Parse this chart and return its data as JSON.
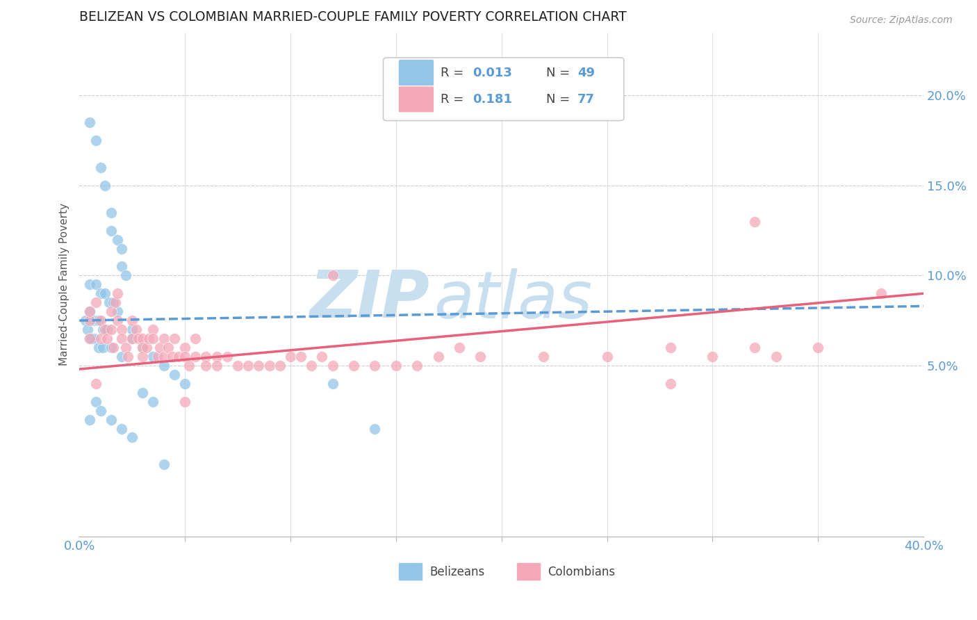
{
  "title": "BELIZEAN VS COLOMBIAN MARRIED-COUPLE FAMILY POVERTY CORRELATION CHART",
  "source": "Source: ZipAtlas.com",
  "ylabel": "Married-Couple Family Poverty",
  "ytick_labels": [
    "5.0%",
    "10.0%",
    "15.0%",
    "20.0%"
  ],
  "ytick_values": [
    0.05,
    0.1,
    0.15,
    0.2
  ],
  "xlim": [
    0.0,
    0.4
  ],
  "ylim": [
    -0.045,
    0.235
  ],
  "belizean_color": "#92C5E8",
  "colombian_color": "#F4A8B8",
  "belizean_line_color": "#5B9BD5",
  "colombian_line_color": "#E8607A",
  "tick_color": "#5B9BD5",
  "watermark_color": "#C8DFF0",
  "legend_R_belizean": "R = ",
  "legend_R_val_belizean": "0.013",
  "legend_N_belizean": "N = 49",
  "legend_R_colombian": "R = ",
  "legend_R_val_colombian": "0.181",
  "legend_N_colombian": "N = 77",
  "belizean_x": [
    0.005,
    0.008,
    0.01,
    0.012,
    0.015,
    0.015,
    0.018,
    0.02,
    0.02,
    0.022,
    0.005,
    0.008,
    0.01,
    0.012,
    0.014,
    0.016,
    0.018,
    0.005,
    0.007,
    0.009,
    0.011,
    0.013,
    0.005,
    0.007,
    0.009,
    0.011,
    0.003,
    0.004,
    0.006,
    0.015,
    0.02,
    0.025,
    0.025,
    0.03,
    0.035,
    0.04,
    0.045,
    0.05,
    0.12,
    0.14,
    0.03,
    0.035,
    0.04,
    0.008,
    0.01,
    0.015,
    0.02,
    0.025,
    0.005
  ],
  "belizean_y": [
    0.185,
    0.175,
    0.16,
    0.15,
    0.135,
    0.125,
    0.12,
    0.115,
    0.105,
    0.1,
    0.095,
    0.095,
    0.09,
    0.09,
    0.085,
    0.085,
    0.08,
    0.08,
    0.075,
    0.075,
    0.07,
    0.07,
    0.065,
    0.065,
    0.06,
    0.06,
    0.075,
    0.07,
    0.065,
    0.06,
    0.055,
    0.07,
    0.065,
    0.06,
    0.055,
    0.05,
    0.045,
    0.04,
    0.04,
    0.015,
    0.035,
    0.03,
    -0.005,
    0.03,
    0.025,
    0.02,
    0.015,
    0.01,
    0.02
  ],
  "colombian_x": [
    0.005,
    0.005,
    0.008,
    0.01,
    0.01,
    0.012,
    0.013,
    0.015,
    0.015,
    0.016,
    0.017,
    0.018,
    0.018,
    0.02,
    0.02,
    0.022,
    0.023,
    0.025,
    0.025,
    0.027,
    0.028,
    0.03,
    0.03,
    0.03,
    0.032,
    0.033,
    0.035,
    0.035,
    0.037,
    0.038,
    0.04,
    0.04,
    0.042,
    0.044,
    0.045,
    0.047,
    0.05,
    0.05,
    0.052,
    0.055,
    0.055,
    0.06,
    0.06,
    0.065,
    0.065,
    0.07,
    0.075,
    0.08,
    0.085,
    0.09,
    0.095,
    0.1,
    0.105,
    0.11,
    0.115,
    0.12,
    0.13,
    0.14,
    0.15,
    0.16,
    0.17,
    0.18,
    0.19,
    0.22,
    0.25,
    0.28,
    0.3,
    0.32,
    0.33,
    0.35,
    0.008,
    0.38,
    0.05,
    0.12,
    0.28,
    0.32,
    0.005
  ],
  "colombian_y": [
    0.075,
    0.065,
    0.085,
    0.075,
    0.065,
    0.07,
    0.065,
    0.08,
    0.07,
    0.06,
    0.085,
    0.09,
    0.075,
    0.07,
    0.065,
    0.06,
    0.055,
    0.075,
    0.065,
    0.07,
    0.065,
    0.065,
    0.06,
    0.055,
    0.06,
    0.065,
    0.07,
    0.065,
    0.055,
    0.06,
    0.065,
    0.055,
    0.06,
    0.055,
    0.065,
    0.055,
    0.06,
    0.055,
    0.05,
    0.055,
    0.065,
    0.055,
    0.05,
    0.055,
    0.05,
    0.055,
    0.05,
    0.05,
    0.05,
    0.05,
    0.05,
    0.055,
    0.055,
    0.05,
    0.055,
    0.05,
    0.05,
    0.05,
    0.05,
    0.05,
    0.055,
    0.06,
    0.055,
    0.055,
    0.055,
    0.06,
    0.055,
    0.06,
    0.055,
    0.06,
    0.04,
    0.09,
    0.03,
    0.1,
    0.04,
    0.13,
    0.08
  ],
  "bel_trend_x": [
    0.0,
    0.4
  ],
  "bel_trend_y": [
    0.075,
    0.083
  ],
  "col_trend_x": [
    0.0,
    0.4
  ],
  "col_trend_y": [
    0.048,
    0.09
  ]
}
